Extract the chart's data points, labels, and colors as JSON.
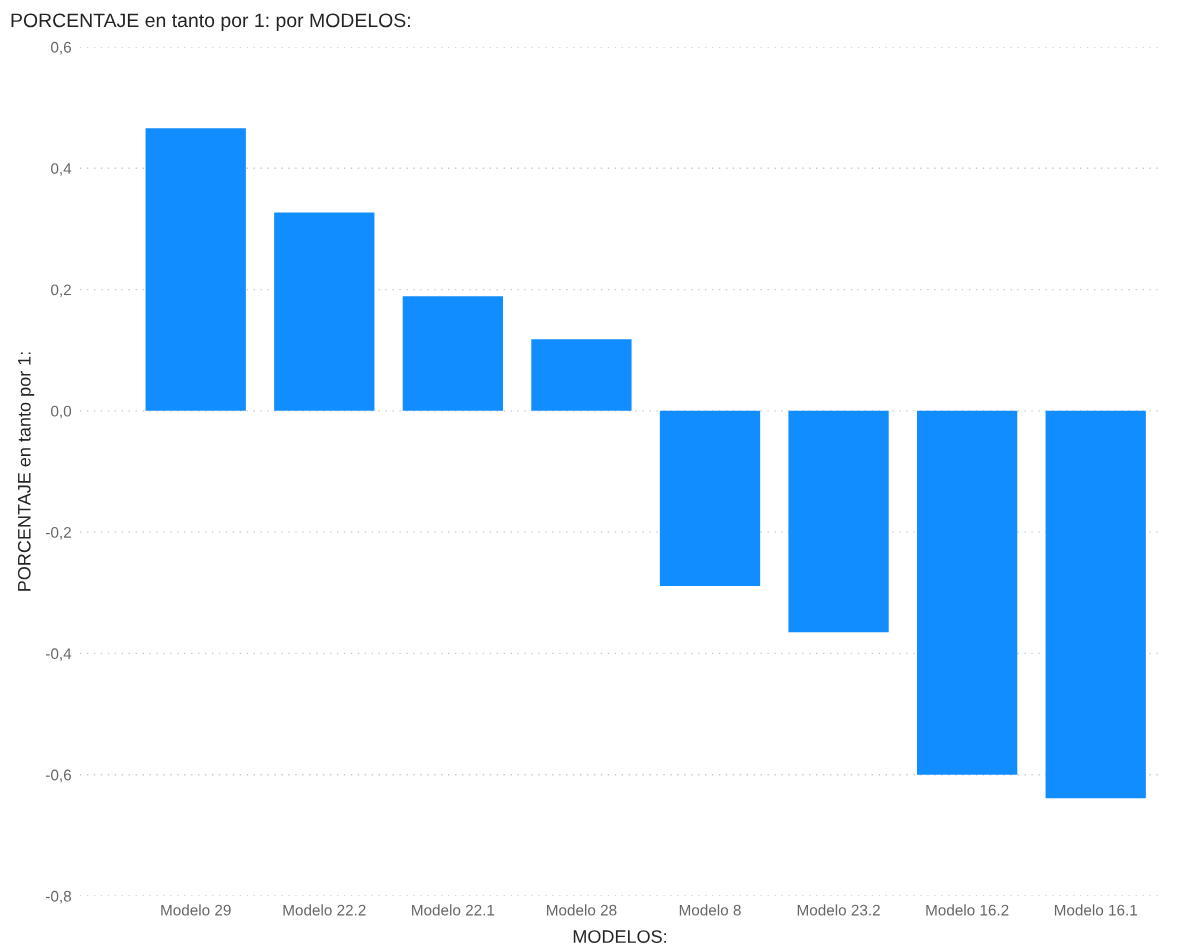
{
  "chart_data": {
    "type": "bar",
    "title": "PORCENTAJE en tanto por 1: por MODELOS:",
    "xlabel": "MODELOS:",
    "ylabel": "PORCENTAJE en tanto por 1:",
    "categories": [
      "Modelo 29",
      "Modelo 22.2",
      "Modelo 22.1",
      "Modelo 28",
      "Modelo 8",
      "Modelo 23.2",
      "Modelo 16.2",
      "Modelo 16.1"
    ],
    "values": [
      0.466,
      0.327,
      0.189,
      0.118,
      -0.289,
      -0.365,
      -0.6,
      -0.639
    ],
    "color": "#118dff",
    "ylim": [
      -0.8,
      0.6
    ],
    "yticks": [
      {
        "value": -0.8,
        "label": "-0,8"
      },
      {
        "value": -0.6,
        "label": "-0,6"
      },
      {
        "value": -0.4,
        "label": "-0,4"
      },
      {
        "value": -0.2,
        "label": "-0,2"
      },
      {
        "value": 0,
        "label": "0,0"
      },
      {
        "value": 0.2,
        "label": "0,2"
      },
      {
        "value": 0.4,
        "label": "0,4"
      },
      {
        "value": 0.6,
        "label": "0,6"
      }
    ],
    "grid": "y"
  }
}
